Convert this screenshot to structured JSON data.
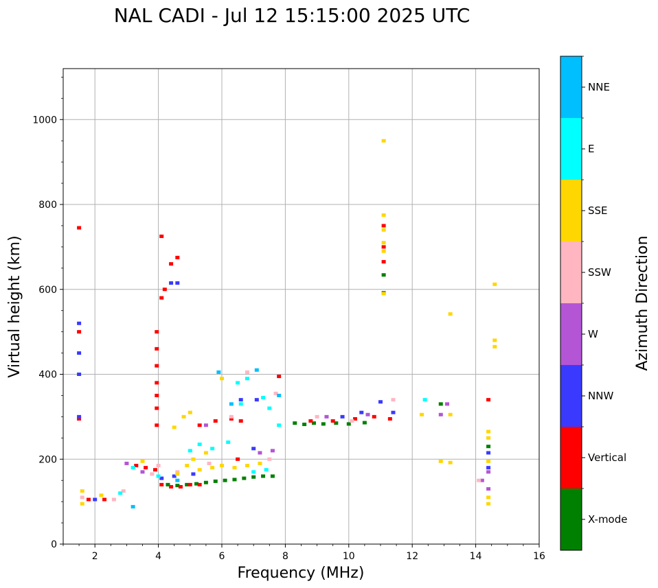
{
  "chart_data": {
    "type": "scatter",
    "title": "NAL CADI - Jul 12 15:15:00 2025 UTC",
    "xlabel": "Frequency (MHz)",
    "ylabel": "Virtual height (km)",
    "xlim": [
      1,
      16
    ],
    "ylim": [
      0,
      1120
    ],
    "xticks": [
      2,
      4,
      6,
      8,
      10,
      12,
      14,
      16
    ],
    "yticks": [
      0,
      200,
      400,
      600,
      800,
      1000
    ],
    "grid": true,
    "colorbar": {
      "title": "Azimuth Direction",
      "position": "right",
      "categories": [
        {
          "name": "X-mode",
          "color": "#008000"
        },
        {
          "name": "Vertical",
          "color": "#ff0000"
        },
        {
          "name": "NNW",
          "color": "#3a3aff"
        },
        {
          "name": "W",
          "color": "#b455d6"
        },
        {
          "name": "SSW",
          "color": "#ffb6c1"
        },
        {
          "name": "SSE",
          "color": "#ffd700"
        },
        {
          "name": "E",
          "color": "#00ffff"
        },
        {
          "name": "NNE",
          "color": "#00bfff"
        }
      ]
    },
    "series": [
      {
        "name": "X-mode",
        "points": [
          [
            4.3,
            140
          ],
          [
            4.6,
            138
          ],
          [
            4.9,
            140
          ],
          [
            5.2,
            142
          ],
          [
            5.5,
            145
          ],
          [
            5.8,
            148
          ],
          [
            6.1,
            150
          ],
          [
            6.4,
            152
          ],
          [
            6.7,
            155
          ],
          [
            7.0,
            158
          ],
          [
            7.3,
            160
          ],
          [
            7.6,
            160
          ],
          [
            8.3,
            285
          ],
          [
            8.6,
            282
          ],
          [
            8.9,
            285
          ],
          [
            9.2,
            283
          ],
          [
            9.6,
            285
          ],
          [
            10.0,
            283
          ],
          [
            10.5,
            286
          ],
          [
            11.1,
            592
          ],
          [
            11.1,
            634
          ],
          [
            12.9,
            330
          ],
          [
            14.4,
            230
          ]
        ]
      },
      {
        "name": "Vertical",
        "points": [
          [
            1.5,
            295
          ],
          [
            1.5,
            500
          ],
          [
            1.5,
            745
          ],
          [
            1.8,
            105
          ],
          [
            2.3,
            105
          ],
          [
            3.3,
            185
          ],
          [
            3.6,
            180
          ],
          [
            3.9,
            175
          ],
          [
            4.1,
            140
          ],
          [
            4.4,
            135
          ],
          [
            4.7,
            135
          ],
          [
            5.0,
            140
          ],
          [
            5.3,
            140
          ],
          [
            3.95,
            280
          ],
          [
            3.95,
            320
          ],
          [
            3.95,
            350
          ],
          [
            3.95,
            380
          ],
          [
            3.95,
            420
          ],
          [
            3.95,
            460
          ],
          [
            3.95,
            500
          ],
          [
            4.1,
            580
          ],
          [
            4.2,
            600
          ],
          [
            4.4,
            660
          ],
          [
            4.6,
            675
          ],
          [
            4.1,
            725
          ],
          [
            5.3,
            280
          ],
          [
            5.8,
            290
          ],
          [
            6.3,
            295
          ],
          [
            6.6,
            290
          ],
          [
            6.5,
            200
          ],
          [
            7.8,
            395
          ],
          [
            8.8,
            290
          ],
          [
            9.5,
            290
          ],
          [
            10.2,
            295
          ],
          [
            10.8,
            300
          ],
          [
            11.1,
            665
          ],
          [
            11.1,
            700
          ],
          [
            11.1,
            750
          ],
          [
            11.3,
            295
          ],
          [
            14.4,
            340
          ]
        ]
      },
      {
        "name": "NNW",
        "points": [
          [
            1.5,
            300
          ],
          [
            1.5,
            400
          ],
          [
            1.5,
            450
          ],
          [
            1.5,
            520
          ],
          [
            2.0,
            105
          ],
          [
            4.1,
            155
          ],
          [
            4.5,
            160
          ],
          [
            5.1,
            165
          ],
          [
            4.4,
            615
          ],
          [
            4.6,
            615
          ],
          [
            6.6,
            340
          ],
          [
            7.1,
            340
          ],
          [
            7.0,
            225
          ],
          [
            9.8,
            300
          ],
          [
            10.4,
            310
          ],
          [
            11.0,
            335
          ],
          [
            11.4,
            310
          ],
          [
            14.4,
            215
          ],
          [
            14.4,
            180
          ]
        ]
      },
      {
        "name": "W",
        "points": [
          [
            3.0,
            190
          ],
          [
            3.5,
            170
          ],
          [
            5.5,
            280
          ],
          [
            7.2,
            215
          ],
          [
            7.6,
            220
          ],
          [
            9.3,
            300
          ],
          [
            10.6,
            305
          ],
          [
            13.1,
            330
          ],
          [
            12.9,
            305
          ],
          [
            14.4,
            170
          ],
          [
            14.4,
            130
          ],
          [
            14.2,
            150
          ]
        ]
      },
      {
        "name": "SSW",
        "points": [
          [
            1.6,
            110
          ],
          [
            2.6,
            105
          ],
          [
            2.9,
            125
          ],
          [
            3.8,
            165
          ],
          [
            4.0,
            185
          ],
          [
            4.6,
            170
          ],
          [
            5.6,
            190
          ],
          [
            6.8,
            405
          ],
          [
            6.3,
            300
          ],
          [
            7.5,
            200
          ],
          [
            7.7,
            355
          ],
          [
            9.0,
            300
          ],
          [
            10.1,
            290
          ],
          [
            11.4,
            340
          ],
          [
            14.1,
            150
          ]
        ]
      },
      {
        "name": "SSE",
        "points": [
          [
            1.6,
            125
          ],
          [
            1.6,
            95
          ],
          [
            2.2,
            115
          ],
          [
            3.5,
            195
          ],
          [
            4.6,
            165
          ],
          [
            4.9,
            185
          ],
          [
            5.3,
            175
          ],
          [
            5.7,
            180
          ],
          [
            6.0,
            185
          ],
          [
            6.4,
            180
          ],
          [
            6.8,
            185
          ],
          [
            7.2,
            190
          ],
          [
            4.5,
            275
          ],
          [
            4.8,
            300
          ],
          [
            5.0,
            310
          ],
          [
            5.1,
            200
          ],
          [
            5.5,
            215
          ],
          [
            6.0,
            390
          ],
          [
            11.1,
            775
          ],
          [
            11.1,
            740
          ],
          [
            11.1,
            710
          ],
          [
            11.1,
            690
          ],
          [
            11.1,
            590
          ],
          [
            11.1,
            950
          ],
          [
            12.3,
            305
          ],
          [
            13.2,
            305
          ],
          [
            13.2,
            542
          ],
          [
            12.9,
            195
          ],
          [
            13.2,
            192
          ],
          [
            14.4,
            250
          ],
          [
            14.4,
            265
          ],
          [
            14.4,
            195
          ],
          [
            14.4,
            110
          ],
          [
            14.4,
            95
          ],
          [
            14.6,
            480
          ],
          [
            14.6,
            465
          ],
          [
            14.6,
            612
          ]
        ]
      },
      {
        "name": "E",
        "points": [
          [
            2.8,
            120
          ],
          [
            3.2,
            180
          ],
          [
            4.0,
            160
          ],
          [
            5.0,
            220
          ],
          [
            5.3,
            235
          ],
          [
            5.7,
            225
          ],
          [
            6.2,
            240
          ],
          [
            6.6,
            330
          ],
          [
            7.3,
            345
          ],
          [
            6.8,
            390
          ],
          [
            7.0,
            170
          ],
          [
            7.4,
            175
          ],
          [
            7.8,
            280
          ],
          [
            7.5,
            320
          ],
          [
            6.5,
            380
          ],
          [
            12.4,
            340
          ]
        ]
      },
      {
        "name": "NNE",
        "points": [
          [
            3.2,
            88
          ],
          [
            4.6,
            150
          ],
          [
            6.3,
            330
          ],
          [
            5.9,
            405
          ],
          [
            7.1,
            410
          ],
          [
            7.8,
            350
          ]
        ]
      }
    ]
  }
}
